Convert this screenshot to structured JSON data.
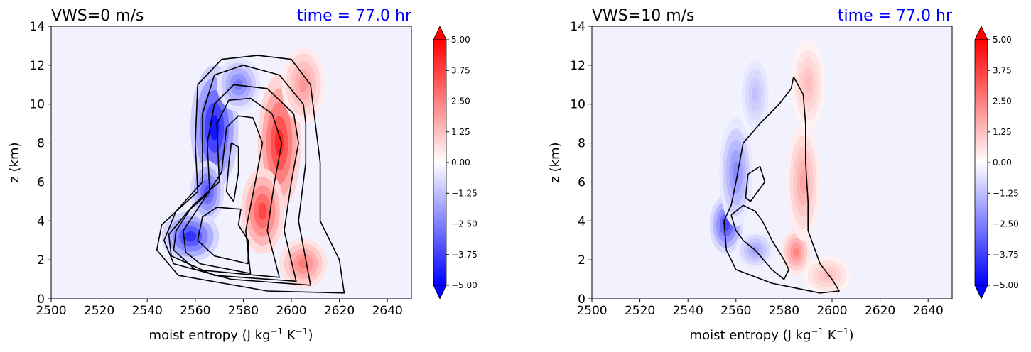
{
  "chart_data": [
    {
      "type": "contour",
      "title_left": "VWS=0 m/s",
      "title_right": "time = 77.0 hr",
      "xlabel": "moist entropy (J kg",
      "xlabel_sup1": "−1",
      "xlabel_mid": " K",
      "xlabel_sup2": "−1",
      "xlabel_end": ")",
      "ylabel": "z (km)",
      "xlim": [
        2500,
        2650
      ],
      "ylim": [
        0,
        14
      ],
      "xticks": [
        "2500",
        "2520",
        "2540",
        "2560",
        "2580",
        "2600",
        "2620",
        "2640"
      ],
      "yticks": [
        "0",
        "2",
        "4",
        "6",
        "8",
        "10",
        "12",
        "14"
      ],
      "colorbar_ticks": [
        "5.00",
        "3.75",
        "2.50",
        "1.25",
        "0.00",
        "−1.25",
        "−2.50",
        "−3.75",
        "−5.00"
      ],
      "colorbar_range": [
        -5,
        5
      ],
      "colormap": "bwr",
      "neg_blobs": [
        {
          "x": 2568,
          "y": 8.8,
          "rx": 10,
          "ry": 3.2,
          "v": -4.6
        },
        {
          "x": 2558,
          "y": 3.2,
          "rx": 12,
          "ry": 1.3,
          "v": -4.0
        },
        {
          "x": 2565,
          "y": 5.5,
          "rx": 7,
          "ry": 1.6,
          "v": -3.5
        },
        {
          "x": 2578,
          "y": 11.0,
          "rx": 9,
          "ry": 1.4,
          "v": -2.6
        }
      ],
      "pos_blobs": [
        {
          "x": 2595,
          "y": 8.0,
          "rx": 9,
          "ry": 3.5,
          "v": 4.2
        },
        {
          "x": 2588,
          "y": 4.5,
          "rx": 9,
          "ry": 2.2,
          "v": 3.6
        },
        {
          "x": 2605,
          "y": 1.8,
          "rx": 10,
          "ry": 1.3,
          "v": 2.6
        },
        {
          "x": 2605,
          "y": 11.0,
          "rx": 9,
          "ry": 2.0,
          "v": 2.0
        }
      ],
      "contours": [
        [
          [
            2579,
            4.6
          ],
          [
            2569,
            4.7
          ],
          [
            2563,
            4.2
          ],
          [
            2561,
            3.0
          ],
          [
            2568,
            2.2
          ],
          [
            2582,
            1.8
          ],
          [
            2582,
            3.0
          ],
          [
            2578,
            3.8
          ],
          [
            2579,
            4.6
          ]
        ],
        [
          [
            2578,
            7.8
          ],
          [
            2575,
            8.0
          ],
          [
            2574,
            7.0
          ],
          [
            2573,
            5.5
          ],
          [
            2576,
            5.0
          ],
          [
            2578,
            6.5
          ],
          [
            2578,
            7.8
          ]
        ],
        [
          [
            2584,
            9.3
          ],
          [
            2578,
            9.4
          ],
          [
            2573,
            8.8
          ],
          [
            2571,
            6.5
          ],
          [
            2563,
            5.0
          ],
          [
            2555,
            3.5
          ],
          [
            2556,
            2.4
          ],
          [
            2562,
            1.8
          ],
          [
            2583,
            1.3
          ],
          [
            2581,
            3.5
          ],
          [
            2585,
            6.0
          ],
          [
            2588,
            8.0
          ],
          [
            2584,
            9.3
          ]
        ],
        [
          [
            2592,
            9.5
          ],
          [
            2583,
            10.3
          ],
          [
            2574,
            10.2
          ],
          [
            2569,
            9.0
          ],
          [
            2570,
            6.0
          ],
          [
            2559,
            4.8
          ],
          [
            2552,
            3.5
          ],
          [
            2551,
            2.5
          ],
          [
            2560,
            1.5
          ],
          [
            2595,
            1.1
          ],
          [
            2590,
            3.5
          ],
          [
            2593,
            6.0
          ],
          [
            2596,
            8.0
          ],
          [
            2592,
            9.5
          ]
        ],
        [
          [
            2601,
            9.5
          ],
          [
            2590,
            10.8
          ],
          [
            2576,
            11.0
          ],
          [
            2568,
            10.0
          ],
          [
            2565,
            8.0
          ],
          [
            2566,
            5.5
          ],
          [
            2557,
            4.5
          ],
          [
            2549,
            3.3
          ],
          [
            2550,
            2.2
          ],
          [
            2568,
            1.2
          ],
          [
            2602,
            0.9
          ],
          [
            2597,
            3.5
          ],
          [
            2600,
            6.0
          ],
          [
            2603,
            8.0
          ],
          [
            2601,
            9.5
          ]
        ],
        [
          [
            2605,
            10.0
          ],
          [
            2595,
            11.5
          ],
          [
            2580,
            12.0
          ],
          [
            2568,
            11.5
          ],
          [
            2563,
            9.5
          ],
          [
            2563,
            6.0
          ],
          [
            2552,
            4.5
          ],
          [
            2547,
            3.0
          ],
          [
            2551,
            1.8
          ],
          [
            2575,
            1.0
          ],
          [
            2608,
            0.7
          ],
          [
            2603,
            4.0
          ],
          [
            2606,
            7.0
          ],
          [
            2606,
            9.0
          ],
          [
            2605,
            10.0
          ]
        ],
        [
          [
            2610,
            9.0
          ],
          [
            2608,
            11.0
          ],
          [
            2600,
            12.3
          ],
          [
            2586,
            12.5
          ],
          [
            2571,
            12.3
          ],
          [
            2561,
            11.0
          ],
          [
            2560,
            8.0
          ],
          [
            2561,
            5.5
          ],
          [
            2546,
            3.8
          ],
          [
            2544,
            2.5
          ],
          [
            2553,
            1.2
          ],
          [
            2590,
            0.4
          ],
          [
            2622,
            0.3
          ],
          [
            2620,
            2.0
          ],
          [
            2612,
            4.0
          ],
          [
            2612,
            7.0
          ],
          [
            2610,
            9.0
          ]
        ]
      ]
    },
    {
      "type": "contour",
      "title_left": "VWS=10 m/s",
      "title_right": "time = 77.0 hr",
      "xlabel": "moist entropy (J kg",
      "xlabel_sup1": "−1",
      "xlabel_mid": " K",
      "xlabel_sup2": "−1",
      "xlabel_end": ")",
      "ylabel": "z (km)",
      "xlim": [
        2500,
        2650
      ],
      "ylim": [
        0,
        14
      ],
      "xticks": [
        "2500",
        "2520",
        "2540",
        "2560",
        "2580",
        "2600",
        "2620",
        "2640"
      ],
      "yticks": [
        "0",
        "2",
        "4",
        "6",
        "8",
        "10",
        "12",
        "14"
      ],
      "colorbar_ticks": [
        "5.00",
        "3.75",
        "2.50",
        "1.25",
        "0.00",
        "−1.25",
        "−2.50",
        "−3.75",
        "−5.00"
      ],
      "colorbar_range": [
        -5,
        5
      ],
      "colormap": "bwr",
      "neg_blobs": [
        {
          "x": 2556,
          "y": 3.8,
          "rx": 7,
          "ry": 1.5,
          "v": -3.6
        },
        {
          "x": 2560,
          "y": 6.5,
          "rx": 7,
          "ry": 2.8,
          "v": -2.3
        },
        {
          "x": 2568,
          "y": 10.5,
          "rx": 7,
          "ry": 2.2,
          "v": -1.2
        },
        {
          "x": 2568,
          "y": 2.5,
          "rx": 8,
          "ry": 1.0,
          "v": -1.8
        }
      ],
      "pos_blobs": [
        {
          "x": 2585,
          "y": 2.4,
          "rx": 6,
          "ry": 1.2,
          "v": 2.4
        },
        {
          "x": 2588,
          "y": 6.0,
          "rx": 7,
          "ry": 3.0,
          "v": 1.8
        },
        {
          "x": 2590,
          "y": 11.0,
          "rx": 7,
          "ry": 2.3,
          "v": 1.3
        },
        {
          "x": 2598,
          "y": 1.2,
          "rx": 10,
          "ry": 1.0,
          "v": 1.3
        }
      ],
      "contours": [
        [
          [
            2570,
            6.8
          ],
          [
            2565,
            6.4
          ],
          [
            2564,
            5.2
          ],
          [
            2566,
            5.0
          ],
          [
            2572,
            6.0
          ],
          [
            2570,
            6.8
          ]
        ],
        [
          [
            2584,
            11.4
          ],
          [
            2583,
            10.8
          ],
          [
            2578,
            10.0
          ],
          [
            2570,
            9.0
          ],
          [
            2563,
            8.0
          ],
          [
            2560,
            6.0
          ],
          [
            2558,
            4.8
          ],
          [
            2555,
            4.0
          ],
          [
            2556,
            2.5
          ],
          [
            2560,
            1.5
          ],
          [
            2575,
            0.8
          ],
          [
            2595,
            0.3
          ],
          [
            2603,
            0.4
          ],
          [
            2600,
            1.0
          ],
          [
            2595,
            1.8
          ],
          [
            2590,
            3.5
          ],
          [
            2590,
            5.0
          ],
          [
            2589,
            7.0
          ],
          [
            2589,
            9.0
          ],
          [
            2588,
            10.5
          ],
          [
            2584,
            11.4
          ]
        ],
        [
          [
            2558,
            4.3
          ],
          [
            2563,
            4.8
          ],
          [
            2568,
            4.5
          ],
          [
            2571,
            4.0
          ],
          [
            2575,
            3.0
          ],
          [
            2580,
            2.0
          ],
          [
            2582,
            1.5
          ],
          [
            2580,
            1.0
          ],
          [
            2575,
            1.5
          ],
          [
            2568,
            2.5
          ],
          [
            2563,
            3.0
          ],
          [
            2560,
            3.5
          ],
          [
            2558,
            4.3
          ]
        ]
      ]
    }
  ]
}
